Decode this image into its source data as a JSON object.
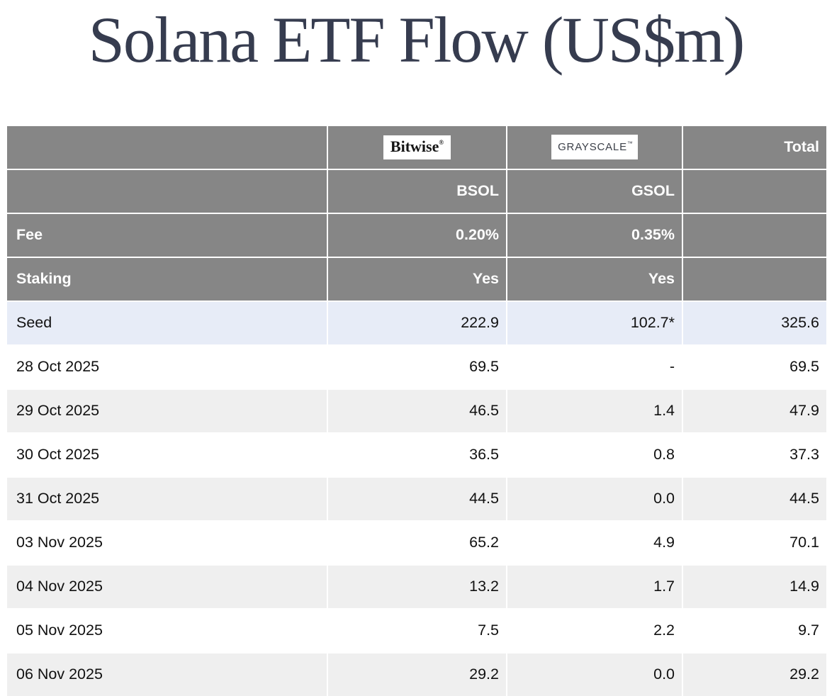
{
  "title": "Solana ETF Flow (US$m)",
  "header": {
    "bitwise_logo": "Bitwise",
    "bitwise_mark": "®",
    "grayscale_logo": "GRAYSCALE",
    "grayscale_mark": "™",
    "total_label": "Total",
    "bsol_label": "BSOL",
    "gsol_label": "GSOL"
  },
  "meta_rows": [
    {
      "label": "Fee",
      "bsol": "0.20%",
      "gsol": "0.35%",
      "total": ""
    },
    {
      "label": "Staking",
      "bsol": "Yes",
      "gsol": "Yes",
      "total": ""
    }
  ],
  "rows": [
    {
      "label": "Seed",
      "bsol": "222.9",
      "gsol": "102.7*",
      "total": "325.6"
    },
    {
      "label": "28 Oct 2025",
      "bsol": "69.5",
      "gsol": "-",
      "total": "69.5"
    },
    {
      "label": "29 Oct 2025",
      "bsol": "46.5",
      "gsol": "1.4",
      "total": "47.9"
    },
    {
      "label": "30 Oct 2025",
      "bsol": "36.5",
      "gsol": "0.8",
      "total": "37.3"
    },
    {
      "label": "31 Oct 2025",
      "bsol": "44.5",
      "gsol": "0.0",
      "total": "44.5"
    },
    {
      "label": "03 Nov 2025",
      "bsol": "65.2",
      "gsol": "4.9",
      "total": "70.1"
    },
    {
      "label": "04 Nov 2025",
      "bsol": "13.2",
      "gsol": "1.7",
      "total": "14.9"
    },
    {
      "label": "05 Nov 2025",
      "bsol": "7.5",
      "gsol": "2.2",
      "total": "9.7"
    },
    {
      "label": "06 Nov 2025",
      "bsol": "29.2",
      "gsol": "0.0",
      "total": "29.2"
    }
  ],
  "colors": {
    "header_bg": "#868686",
    "header_text": "#ffffff",
    "seed_row_bg": "#e7ecf7",
    "alt_row_bg": "#efefef",
    "title_color": "#363c4f",
    "bottom_strip_green": "#a6e7a1"
  },
  "chart_data": {
    "type": "table",
    "title": "Solana ETF Flow (US$m)",
    "columns": [
      "",
      "Bitwise BSOL",
      "Grayscale GSOL",
      "Total"
    ],
    "rows": [
      [
        "Fee",
        "0.20%",
        "0.35%",
        ""
      ],
      [
        "Staking",
        "Yes",
        "Yes",
        ""
      ],
      [
        "Seed",
        222.9,
        "102.7*",
        325.6
      ],
      [
        "28 Oct 2025",
        69.5,
        "-",
        69.5
      ],
      [
        "29 Oct 2025",
        46.5,
        1.4,
        47.9
      ],
      [
        "30 Oct 2025",
        36.5,
        0.8,
        37.3
      ],
      [
        "31 Oct 2025",
        44.5,
        0.0,
        44.5
      ],
      [
        "03 Nov 2025",
        65.2,
        4.9,
        70.1
      ],
      [
        "04 Nov 2025",
        13.2,
        1.7,
        14.9
      ],
      [
        "05 Nov 2025",
        7.5,
        2.2,
        9.7
      ],
      [
        "06 Nov 2025",
        29.2,
        0.0,
        29.2
      ]
    ],
    "notes": "Seed row highlighted blue; GSOL seed value flagged with asterisk; layout uses gray header band with Bitwise and Grayscale logo badges; green strip of a cut-off row at bottom."
  }
}
